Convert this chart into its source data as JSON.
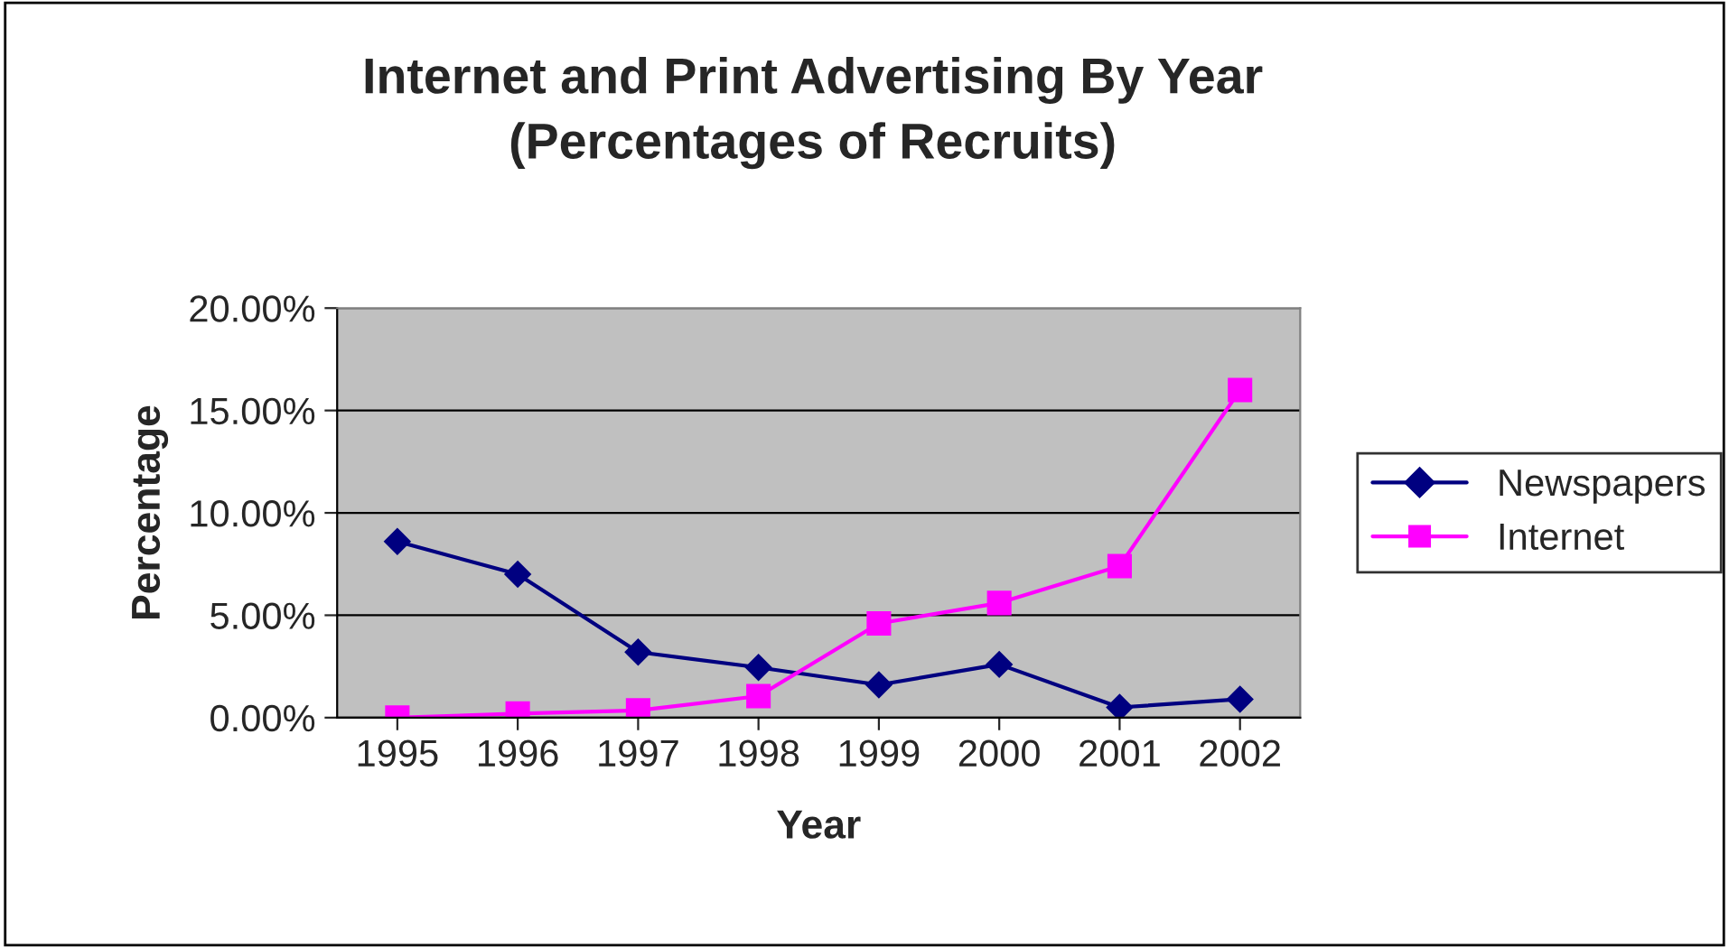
{
  "chart_data": {
    "type": "line",
    "title": "Internet and Print Advertising By Year\n(Percentages of Recruits)",
    "xlabel": "Year",
    "ylabel": "Percentage",
    "categories": [
      "1995",
      "1996",
      "1997",
      "1998",
      "1999",
      "2000",
      "2001",
      "2002"
    ],
    "series": [
      {
        "name": "Newspapers",
        "color": "#000080",
        "marker": "diamond",
        "values": [
          8.6,
          7.0,
          3.2,
          2.45,
          1.6,
          2.6,
          0.5,
          0.9
        ]
      },
      {
        "name": "Internet",
        "color": "#ff00ff",
        "marker": "square",
        "values": [
          0,
          0.2,
          0.35,
          1.05,
          4.6,
          5.6,
          7.4,
          16.0
        ]
      }
    ],
    "ylim": [
      0,
      20
    ],
    "yticks": [
      {
        "value": 0,
        "label": "0.00%"
      },
      {
        "value": 5,
        "label": "5.00%"
      },
      {
        "value": 10,
        "label": "10.00%"
      },
      {
        "value": 15,
        "label": "15.00%"
      },
      {
        "value": 20,
        "label": "20.00%"
      }
    ],
    "grid": "y",
    "legend": "right"
  }
}
